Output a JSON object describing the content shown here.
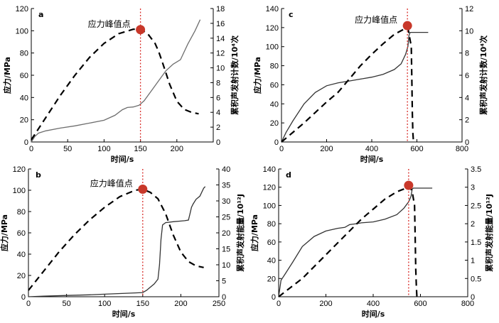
{
  "chart_data": [
    {
      "panel": "a",
      "type": "line",
      "xlabel": "时间/s",
      "ylabel": "应力/MPa",
      "y2label": "累积声发射计数/10⁴次",
      "xlim": [
        0,
        250
      ],
      "ylim": [
        0,
        120
      ],
      "y2lim": [
        0,
        18
      ],
      "xticks": [
        0,
        50,
        100,
        150,
        200
      ],
      "yticks": [
        0,
        20,
        40,
        60,
        80,
        100,
        120
      ],
      "y2ticks": [
        0,
        2,
        4,
        6,
        8,
        10,
        12,
        14,
        16,
        18
      ],
      "annotation": "应力峰值点",
      "peak": {
        "x": 150,
        "y": 101
      },
      "series": [
        {
          "axis": "left",
          "style": "stress",
          "x": [
            0,
            5,
            10,
            20,
            40,
            60,
            80,
            100,
            115,
            125,
            132,
            140,
            148,
            155,
            165,
            175,
            185,
            195,
            200,
            205,
            215,
            225,
            232
          ],
          "y": [
            0,
            5,
            8,
            10,
            12.5,
            14.5,
            17,
            19.5,
            24,
            29,
            31,
            31.5,
            33,
            37,
            46,
            55,
            64,
            70,
            72,
            74,
            88,
            100,
            110
          ]
        },
        {
          "axis": "right",
          "style": "acoustic",
          "x": [
            0,
            20,
            40,
            60,
            80,
            100,
            120,
            140,
            150,
            160,
            170,
            175,
            180,
            190,
            200,
            210,
            220,
            230
          ],
          "y": [
            0.3,
            3.3,
            6.3,
            9.0,
            11.4,
            13.3,
            14.6,
            15.2,
            15.2,
            14.6,
            13.3,
            12.2,
            10.8,
            7.8,
            5.5,
            4.4,
            4.0,
            3.8
          ]
        }
      ]
    },
    {
      "panel": "b",
      "type": "line",
      "xlabel": "时间/s",
      "ylabel": "应力/MPa",
      "y2label": "累积声发射能量/10¹²J",
      "xlim": [
        0,
        250
      ],
      "ylim": [
        0,
        120
      ],
      "y2lim": [
        0,
        40
      ],
      "xticks": [
        0,
        50,
        100,
        150,
        200,
        250
      ],
      "yticks": [
        0,
        20,
        40,
        60,
        80,
        100,
        120
      ],
      "y2ticks": [
        0,
        5,
        10,
        15,
        20,
        25,
        30,
        35,
        40
      ],
      "annotation": "应力峰值点",
      "peak": {
        "x": 150,
        "y": 101
      },
      "series": [
        {
          "axis": "right",
          "style": "stress-dark",
          "x": [
            0,
            20,
            50,
            80,
            100,
            120,
            140,
            150,
            155,
            160,
            165,
            170,
            172,
            174,
            176,
            180,
            190,
            200,
            205,
            210,
            212,
            214,
            216,
            220,
            225,
            230,
            232
          ],
          "y": [
            0,
            0.2,
            0.4,
            0.6,
            0.8,
            1.0,
            1.2,
            1.3,
            2.0,
            3.0,
            4.0,
            5.5,
            10,
            18,
            22.5,
            23.2,
            23.5,
            23.7,
            23.8,
            24,
            26,
            28,
            29,
            30.5,
            31.5,
            34,
            34.5
          ]
        },
        {
          "axis": "left",
          "style": "acoustic",
          "x": [
            0,
            20,
            40,
            60,
            80,
            100,
            120,
            140,
            150,
            160,
            170,
            180,
            190,
            200,
            210,
            220,
            230
          ],
          "y": [
            6,
            24,
            42,
            58,
            72,
            84,
            94,
            100,
            101,
            98,
            92,
            78,
            58,
            42,
            33,
            29,
            27.5
          ]
        }
      ]
    },
    {
      "panel": "c",
      "type": "line",
      "xlabel": "时间/s",
      "ylabel": "应力/MPa",
      "y2label": "累积声发射计数/10⁴次",
      "xlim": [
        0,
        800
      ],
      "ylim": [
        0,
        140
      ],
      "y2lim": [
        0,
        12
      ],
      "xticks": [
        0,
        200,
        400,
        600,
        800
      ],
      "yticks": [
        0,
        20,
        40,
        60,
        80,
        100,
        120,
        140
      ],
      "y2ticks": [
        0,
        2,
        4,
        6,
        8,
        10,
        12
      ],
      "annotation": "应力峰值点",
      "peak": {
        "x": 558,
        "y": 122
      },
      "series": [
        {
          "axis": "left",
          "style": "stress-dark",
          "x": [
            0,
            20,
            50,
            100,
            150,
            200,
            250,
            300,
            350,
            400,
            450,
            500,
            530,
            550,
            560,
            565,
            570,
            600,
            630,
            650
          ],
          "y": [
            0,
            10,
            22,
            40,
            52,
            59,
            62,
            64,
            66,
            68,
            71,
            76,
            82,
            92,
            100,
            112,
            115,
            115,
            115,
            115
          ]
        },
        {
          "axis": "left",
          "style": "acoustic",
          "x": [
            0,
            50,
            100,
            150,
            200,
            250,
            300,
            350,
            400,
            450,
            500,
            540,
            560,
            575,
            578,
            580,
            582,
            585
          ],
          "y": [
            0,
            10,
            20,
            31,
            42,
            52,
            66,
            80,
            92,
            103,
            113,
            118,
            120,
            100,
            60,
            30,
            10,
            0
          ]
        }
      ]
    },
    {
      "panel": "d",
      "type": "line",
      "xlabel": "时间/s",
      "ylabel": "应力/MPa",
      "y2label": "累积声发射能量/10¹²J",
      "xlim": [
        0,
        800
      ],
      "ylim": [
        0,
        140
      ],
      "y2lim": [
        0,
        3.5
      ],
      "xticks": [
        0,
        200,
        400,
        600,
        800
      ],
      "yticks": [
        0,
        20,
        40,
        60,
        80,
        100,
        120,
        140
      ],
      "y2ticks": [
        0,
        0.5,
        1.0,
        1.5,
        2.0,
        2.5,
        3.0,
        3.5
      ],
      "annotation": "",
      "peak": {
        "x": 550,
        "y": 122
      },
      "series": [
        {
          "axis": "left",
          "style": "stress-dark",
          "x": [
            0,
            10,
            30,
            60,
            100,
            150,
            200,
            250,
            280,
            300,
            330,
            350,
            400,
            450,
            500,
            530,
            550,
            560,
            565,
            570,
            600,
            650
          ],
          "y": [
            0,
            18,
            26,
            38,
            55,
            66,
            72,
            75,
            76,
            79,
            80,
            81,
            82,
            85,
            90,
            97,
            104,
            110,
            118,
            119,
            119,
            119
          ]
        },
        {
          "axis": "left",
          "style": "acoustic",
          "x": [
            0,
            50,
            100,
            150,
            200,
            250,
            300,
            350,
            400,
            450,
            500,
            540,
            555,
            565,
            575,
            578,
            580,
            583,
            585
          ],
          "y": [
            0,
            10,
            20,
            33,
            46,
            59,
            72,
            85,
            96,
            107,
            115,
            119,
            121,
            115,
            100,
            60,
            30,
            10,
            0
          ]
        }
      ]
    }
  ]
}
